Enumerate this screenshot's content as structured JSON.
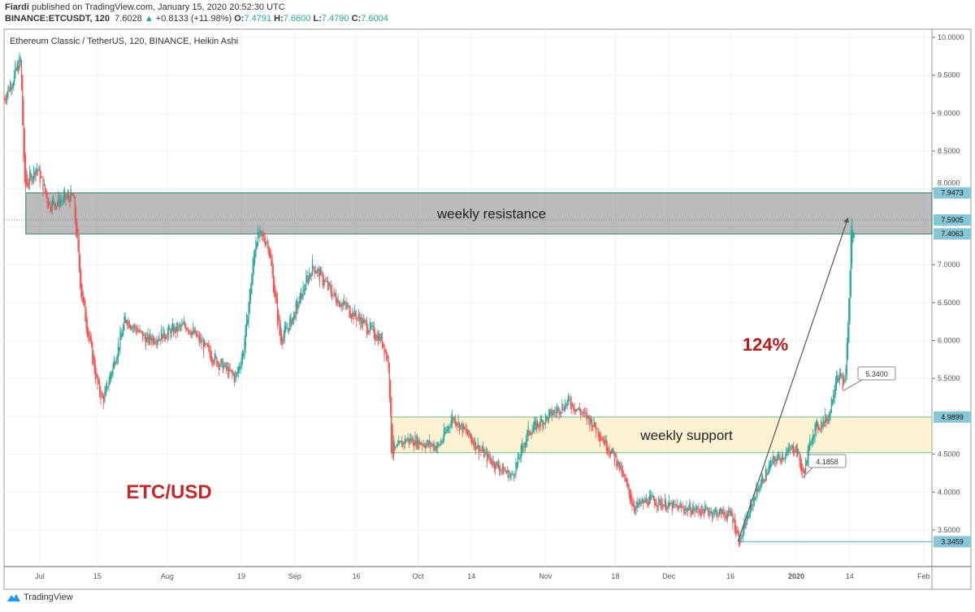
{
  "header": {
    "author": "Fiardi",
    "published": "published on TradingView.com, January 15, 2020 20:52:30 UTC",
    "symbol": "BINANCE:ETCUSDT, 120",
    "last": "7.6028",
    "change": "+0.8133 (+11.98%)",
    "o_label": "O:",
    "o": "7.4791",
    "h_label": "H:",
    "h": "7.6600",
    "l_label": "L:",
    "l": "7.4790",
    "c_label": "C:",
    "c": "7.6004"
  },
  "footer": {
    "brand": "TradingView"
  },
  "colors": {
    "up": "#26a69a",
    "down": "#ef5350",
    "resistance": "#9e9ea3",
    "support": "#fdf0c8",
    "label": "#87c6d6",
    "annotation": "#b71c1c"
  },
  "chart_data": {
    "type": "candlestick",
    "title": "Ethereum Classic / TetherUS, 120, BINANCE, Heikin Ashi",
    "ylim": [
      3.2,
      10.1
    ],
    "y_ticks": [
      "10.0000",
      "9.5000",
      "9.0000",
      "8.5000",
      "8.0000",
      "7.0000",
      "6.5000",
      "6.0000",
      "5.5000",
      "4.5000",
      "4.0000",
      "3.5000"
    ],
    "x_ticks": [
      {
        "label": "Jul",
        "day": 0
      },
      {
        "label": "15",
        "day": 14
      },
      {
        "label": "Aug",
        "day": 31
      },
      {
        "label": "19",
        "day": 49
      },
      {
        "label": "Sep",
        "day": 62
      },
      {
        "label": "16",
        "day": 77
      },
      {
        "label": "Oct",
        "day": 92
      },
      {
        "label": "14",
        "day": 105
      },
      {
        "label": "Nov",
        "day": 123
      },
      {
        "label": "18",
        "day": 140
      },
      {
        "label": "Dec",
        "day": 153
      },
      {
        "label": "16",
        "day": 168
      },
      {
        "label": "2020",
        "day": 184
      },
      {
        "label": "14",
        "day": 197
      },
      {
        "label": "Feb",
        "day": 215
      }
    ],
    "price_path": [
      [
        -8.7,
        9.2
      ],
      [
        -4.7,
        9.7
      ],
      [
        -3.7,
        8.0
      ],
      [
        -0.8,
        8.3
      ],
      [
        2.2,
        7.8
      ],
      [
        8.1,
        7.9
      ],
      [
        10.1,
        6.6
      ],
      [
        14,
        5.4
      ],
      [
        15.4,
        5.2
      ],
      [
        20.9,
        6.3
      ],
      [
        25.9,
        6.0
      ],
      [
        35.8,
        6.2
      ],
      [
        41.7,
        5.8
      ],
      [
        47.6,
        5.5
      ],
      [
        49.6,
        5.9
      ],
      [
        52.6,
        7.4
      ],
      [
        55.5,
        7.3
      ],
      [
        58.5,
        6.0
      ],
      [
        61.5,
        6.3
      ],
      [
        66.4,
        7.0
      ],
      [
        71.3,
        6.6
      ],
      [
        77.3,
        6.3
      ],
      [
        83.2,
        6.0
      ],
      [
        84.8,
        5.7
      ],
      [
        85.6,
        4.5
      ],
      [
        89.1,
        4.7
      ],
      [
        97,
        4.6
      ],
      [
        100.4,
        5.0
      ],
      [
        104.9,
        4.7
      ],
      [
        108.9,
        4.45
      ],
      [
        114.8,
        4.2
      ],
      [
        118.8,
        4.8
      ],
      [
        128.7,
        5.2
      ],
      [
        134.6,
        4.9
      ],
      [
        140.5,
        4.4
      ],
      [
        144.5,
        3.8
      ],
      [
        148.4,
        3.9
      ],
      [
        154.4,
        3.8
      ],
      [
        162.3,
        3.75
      ],
      [
        168.2,
        3.7
      ],
      [
        170.2,
        3.35
      ],
      [
        174.1,
        4.0
      ],
      [
        178.1,
        4.4
      ],
      [
        184,
        4.6
      ],
      [
        185.6,
        4.2
      ],
      [
        187.9,
        4.8
      ],
      [
        191.9,
        5.0
      ],
      [
        193.8,
        5.6
      ],
      [
        195.8,
        5.4
      ],
      [
        196.8,
        6.5
      ],
      [
        197.4,
        7.6
      ],
      [
        198.2,
        7.3
      ]
    ],
    "zones": [
      {
        "label": "weekly resistance",
        "top": 7.9473,
        "bottom": 7.4063,
        "start_day": -3.4
      },
      {
        "label": "weekly support",
        "top": 4.9899,
        "bottom": 4.52,
        "start_day": 85.4
      }
    ],
    "price_labels": [
      {
        "value": 7.9473,
        "text": "7.9473"
      },
      {
        "value": 7.5905,
        "text": "7.5905"
      },
      {
        "value": 7.4063,
        "text": "7.4063"
      },
      {
        "value": 4.9899,
        "text": "4.9899"
      },
      {
        "value": 3.3459,
        "text": "3.3459"
      }
    ],
    "callouts": [
      {
        "text": "5.3400",
        "day": 195.5,
        "value": 5.34
      },
      {
        "text": "4.1858",
        "day": 185.5,
        "value": 4.1858
      }
    ],
    "move_label": "124%",
    "move_from": {
      "day": 169.8,
      "value": 3.3459
    },
    "move_to": {
      "day": 196.6,
      "value": 7.62
    },
    "asset_label": "ETC/USD"
  }
}
